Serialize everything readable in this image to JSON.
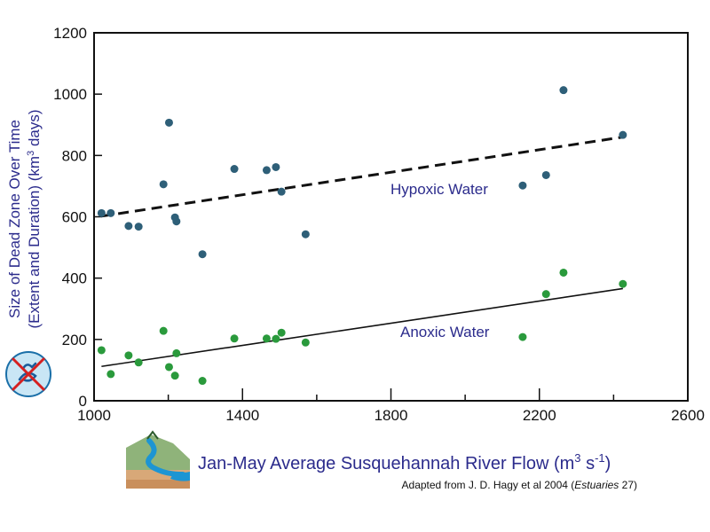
{
  "chart_data": {
    "type": "scatter",
    "xlabel_main": "Jan-May Average Susquehannah River Flow (m",
    "xlabel_unit_sup": "3",
    "xlabel_unit_mid": " s",
    "xlabel_unit_sup2": "-1",
    "xlabel_close": ")",
    "ylabel_line1": "Size of Dead Zone Over Time",
    "ylabel_line2_pre": "(Extent and Duration) (km",
    "ylabel_line2_sup": "3",
    "ylabel_line2_post": " days)",
    "credit_pre": "Adapted from J. D. Hagy et al 2004 (",
    "credit_italic": "Estuaries",
    "credit_post": " 27)",
    "xlim": [
      1000,
      2600
    ],
    "ylim": [
      0,
      1200
    ],
    "x_ticks": [
      1000,
      1400,
      1800,
      2200,
      2600
    ],
    "x_minor_ticks": [
      1200,
      1600,
      2000,
      2400
    ],
    "y_ticks": [
      0,
      200,
      400,
      600,
      800,
      1000,
      1200
    ],
    "grid": false,
    "series": [
      {
        "name": "Hypoxic Water",
        "color": "#2e5f78",
        "points": [
          [
            1020,
            612
          ],
          [
            1045,
            612
          ],
          [
            1093,
            570
          ],
          [
            1120,
            568
          ],
          [
            1187,
            706
          ],
          [
            1202,
            907
          ],
          [
            1218,
            598
          ],
          [
            1222,
            585
          ],
          [
            1292,
            478
          ],
          [
            1378,
            756
          ],
          [
            1465,
            752
          ],
          [
            1490,
            762
          ],
          [
            1505,
            682
          ],
          [
            1570,
            543
          ],
          [
            2155,
            702
          ],
          [
            2218,
            736
          ],
          [
            2265,
            1013
          ],
          [
            2425,
            867
          ]
        ],
        "trend": {
          "style": "dashed",
          "x": [
            1020,
            2425
          ],
          "y": [
            602,
            860
          ]
        }
      },
      {
        "name": "Anoxic Water",
        "color": "#2a9a3c",
        "points": [
          [
            1020,
            165
          ],
          [
            1045,
            87
          ],
          [
            1093,
            148
          ],
          [
            1120,
            125
          ],
          [
            1187,
            228
          ],
          [
            1202,
            110
          ],
          [
            1218,
            82
          ],
          [
            1222,
            155
          ],
          [
            1292,
            65
          ],
          [
            1378,
            203
          ],
          [
            1465,
            203
          ],
          [
            1490,
            202
          ],
          [
            1505,
            222
          ],
          [
            1570,
            190
          ],
          [
            2155,
            208
          ],
          [
            2218,
            348
          ],
          [
            2265,
            418
          ],
          [
            2425,
            381
          ]
        ],
        "trend": {
          "style": "solid",
          "x": [
            1020,
            2425
          ],
          "y": [
            112,
            366
          ]
        }
      }
    ]
  }
}
